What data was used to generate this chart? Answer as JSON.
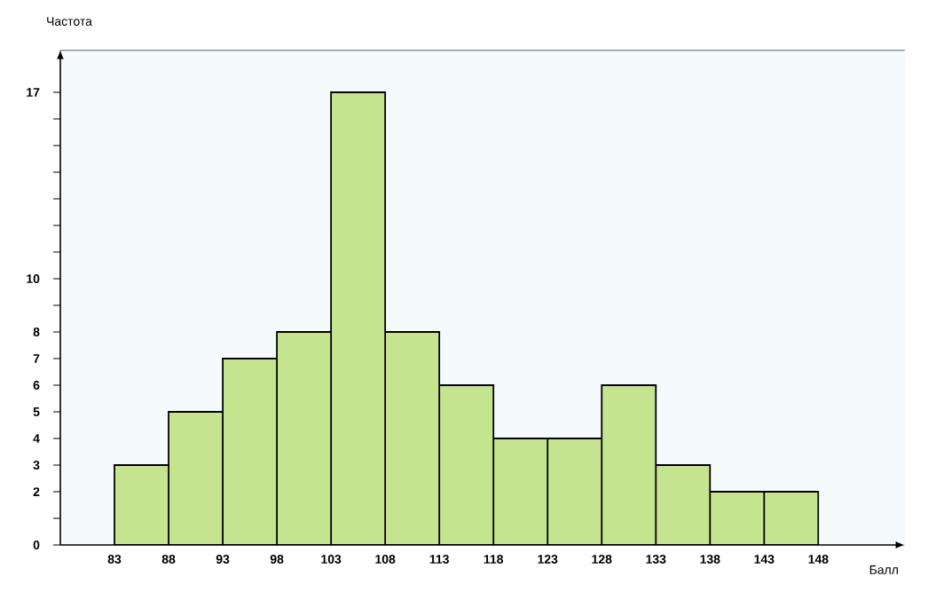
{
  "chart_data": {
    "type": "histogram",
    "xlabel": "Балл",
    "ylabel": "Частота",
    "bins": [
      83,
      88,
      93,
      98,
      103,
      108,
      113,
      118,
      123,
      128,
      133,
      138,
      143,
      148
    ],
    "values": [
      3,
      5,
      7,
      8,
      17,
      8,
      6,
      4,
      4,
      6,
      3,
      2,
      2
    ],
    "color": "#c5e490",
    "xlim": [
      78,
      156
    ],
    "ylim": [
      0,
      18.6
    ],
    "xticks": [
      83,
      88,
      93,
      98,
      103,
      108,
      113,
      118,
      123,
      128,
      133,
      138,
      143,
      148
    ],
    "yticks": [
      0,
      {
        "value": 1,
        "label": null
      },
      2,
      3,
      4,
      5,
      6,
      7,
      8,
      {
        "value": 9,
        "label": null
      },
      10,
      {
        "value": 11,
        "label": null
      },
      {
        "value": 12,
        "label": null
      },
      {
        "value": 13,
        "label": null
      },
      {
        "value": 14,
        "label": null
      },
      {
        "value": 15,
        "label": null
      },
      {
        "value": 16,
        "label": null
      },
      17
    ],
    "grid": false
  }
}
